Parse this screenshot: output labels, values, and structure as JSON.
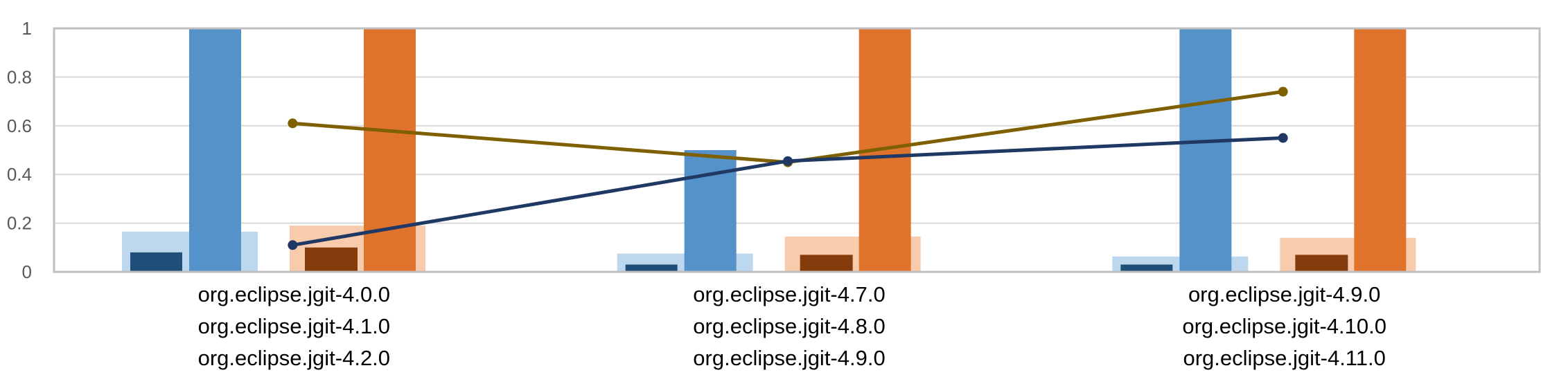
{
  "chart_data": {
    "type": "bar",
    "title": "",
    "xlabel": "",
    "ylabel": "",
    "ylim": [
      0,
      1
    ],
    "yticks": [
      "0",
      "0.2",
      "0.4",
      "0.6",
      "0.8",
      "1"
    ],
    "grid": true,
    "legend": "none",
    "categories": [
      [
        "org.eclipse.jgit-4.0.0",
        "org.eclipse.jgit-4.1.0",
        "org.eclipse.jgit-4.2.0"
      ],
      [
        "org.eclipse.jgit-4.7.0",
        "org.eclipse.jgit-4.8.0",
        "org.eclipse.jgit-4.9.0"
      ],
      [
        "org.eclipse.jgit-4.9.0",
        "org.eclipse.jgit-4.10.0",
        "org.eclipse.jgit-4.11.0"
      ]
    ],
    "bar_series": [
      {
        "color": "#bdd7ee",
        "values": [
          0.165,
          0.075,
          0.063
        ]
      },
      {
        "color": "#1f4e79",
        "values": [
          0.08,
          0.03,
          0.03
        ]
      },
      {
        "color": "#5592c9",
        "values": [
          1.0,
          0.5,
          1.0
        ]
      },
      {
        "color": "#f8cbad",
        "values": [
          0.19,
          0.145,
          0.14
        ]
      },
      {
        "color": "#843c0c",
        "values": [
          0.1,
          0.07,
          0.07
        ]
      },
      {
        "color": "#e0732c",
        "values": [
          1.0,
          1.0,
          1.0
        ]
      }
    ],
    "line_series": [
      {
        "color": "#7f6000",
        "values": [
          0.61,
          0.45,
          0.74
        ]
      },
      {
        "color": "#203864",
        "values": [
          0.11,
          0.455,
          0.55
        ]
      }
    ]
  }
}
